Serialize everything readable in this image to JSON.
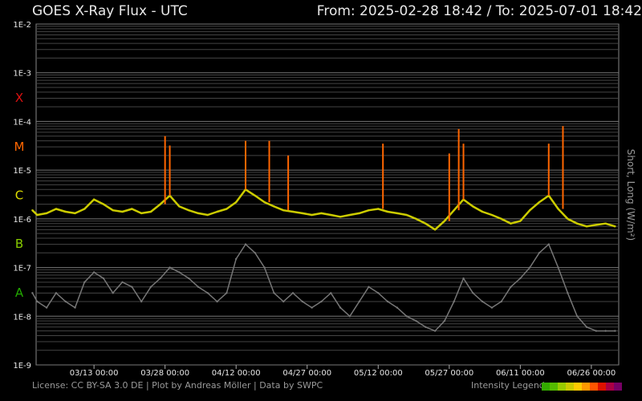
{
  "header": {
    "title": "GOES X-Ray Flux - UTC",
    "range": "From: 2025-02-28 18:42  /  To: 2025-07-01 18:42"
  },
  "footer": {
    "license": "License: CC BY-SA 3.0 DE | Plot by Andreas Möller | Data by SWPC",
    "legend_label": "Intensity Legend",
    "legend_colors": [
      "#33aa00",
      "#55bb00",
      "#99cc00",
      "#cccc00",
      "#ffcc00",
      "#ff9900",
      "#ff5500",
      "#dd1100",
      "#aa0044",
      "#770066"
    ]
  },
  "chart_data": {
    "type": "line",
    "title": "GOES X-Ray Flux - UTC",
    "ylabel": "Short, Long (W/m²)",
    "yscale": "log",
    "ylim": [
      1e-09,
      0.01
    ],
    "xlim": [
      "2025-02-28 18:42",
      "2025-07-01 18:42"
    ],
    "y_ticks": [
      "1E-9",
      "1E-8",
      "1E-7",
      "1E-6",
      "1E-5",
      "1E-4",
      "1E-3",
      "1E-2"
    ],
    "x_ticks": [
      {
        "date": "2025-03-13",
        "label": "03/13 00:00"
      },
      {
        "date": "2025-03-28",
        "label": "03/28 00:00"
      },
      {
        "date": "2025-04-12",
        "label": "04/12 00:00"
      },
      {
        "date": "2025-04-27",
        "label": "04/27 00:00"
      },
      {
        "date": "2025-05-12",
        "label": "05/12 00:00"
      },
      {
        "date": "2025-05-27",
        "label": "05/27 00:00"
      },
      {
        "date": "2025-06-11",
        "label": "06/11 00:00"
      },
      {
        "date": "2025-06-26",
        "label": "06/26 00:00"
      }
    ],
    "flare_classes": [
      {
        "label": "X",
        "color": "#dd1111",
        "lower": 0.0001
      },
      {
        "label": "M",
        "color": "#ff6600",
        "lower": 1e-05
      },
      {
        "label": "C",
        "color": "#dddd00",
        "lower": 1e-06
      },
      {
        "label": "B",
        "color": "#88cc00",
        "lower": 1e-07
      },
      {
        "label": "A",
        "color": "#22aa00",
        "lower": 1e-08
      }
    ],
    "grid": true,
    "series": [
      {
        "name": "Long",
        "color": "#cccc00",
        "x": [
          "2025-02-28",
          "2025-03-01",
          "2025-03-03",
          "2025-03-05",
          "2025-03-07",
          "2025-03-09",
          "2025-03-11",
          "2025-03-13",
          "2025-03-15",
          "2025-03-17",
          "2025-03-19",
          "2025-03-21",
          "2025-03-23",
          "2025-03-25",
          "2025-03-27",
          "2025-03-29",
          "2025-03-31",
          "2025-04-02",
          "2025-04-04",
          "2025-04-06",
          "2025-04-08",
          "2025-04-10",
          "2025-04-12",
          "2025-04-14",
          "2025-04-16",
          "2025-04-18",
          "2025-04-20",
          "2025-04-22",
          "2025-04-24",
          "2025-04-26",
          "2025-04-28",
          "2025-04-30",
          "2025-05-02",
          "2025-05-04",
          "2025-05-06",
          "2025-05-08",
          "2025-05-10",
          "2025-05-12",
          "2025-05-14",
          "2025-05-16",
          "2025-05-18",
          "2025-05-20",
          "2025-05-22",
          "2025-05-24",
          "2025-05-26",
          "2025-05-28",
          "2025-05-30",
          "2025-06-01",
          "2025-06-03",
          "2025-06-05",
          "2025-06-07",
          "2025-06-09",
          "2025-06-11",
          "2025-06-13",
          "2025-06-15",
          "2025-06-17",
          "2025-06-19",
          "2025-06-21",
          "2025-06-23",
          "2025-06-25",
          "2025-06-27",
          "2025-06-29",
          "2025-07-01"
        ],
        "y": [
          1.5e-06,
          1.2e-06,
          1.3e-06,
          1.6e-06,
          1.4e-06,
          1.3e-06,
          1.6e-06,
          2.5e-06,
          2e-06,
          1.5e-06,
          1.4e-06,
          1.6e-06,
          1.3e-06,
          1.4e-06,
          2e-06,
          3e-06,
          1.8e-06,
          1.5e-06,
          1.3e-06,
          1.2e-06,
          1.4e-06,
          1.6e-06,
          2.2e-06,
          4e-06,
          3e-06,
          2.2e-06,
          1.8e-06,
          1.5e-06,
          1.4e-06,
          1.3e-06,
          1.2e-06,
          1.3e-06,
          1.2e-06,
          1.1e-06,
          1.2e-06,
          1.3e-06,
          1.5e-06,
          1.6e-06,
          1.4e-06,
          1.3e-06,
          1.2e-06,
          1e-06,
          8e-07,
          6e-07,
          9e-07,
          1.5e-06,
          2.5e-06,
          1.8e-06,
          1.4e-06,
          1.2e-06,
          1e-06,
          8e-07,
          9e-07,
          1.5e-06,
          2.2e-06,
          3e-06,
          1.6e-06,
          1e-06,
          8e-07,
          7e-07,
          7.5e-07,
          8e-07,
          7e-07
        ]
      },
      {
        "name": "Short",
        "color": "#777777",
        "x": [
          "2025-02-28",
          "2025-03-01",
          "2025-03-03",
          "2025-03-05",
          "2025-03-07",
          "2025-03-09",
          "2025-03-11",
          "2025-03-13",
          "2025-03-15",
          "2025-03-17",
          "2025-03-19",
          "2025-03-21",
          "2025-03-23",
          "2025-03-25",
          "2025-03-27",
          "2025-03-29",
          "2025-03-31",
          "2025-04-02",
          "2025-04-04",
          "2025-04-06",
          "2025-04-08",
          "2025-04-10",
          "2025-04-12",
          "2025-04-14",
          "2025-04-16",
          "2025-04-18",
          "2025-04-20",
          "2025-04-22",
          "2025-04-24",
          "2025-04-26",
          "2025-04-28",
          "2025-04-30",
          "2025-05-02",
          "2025-05-04",
          "2025-05-06",
          "2025-05-08",
          "2025-05-10",
          "2025-05-12",
          "2025-05-14",
          "2025-05-16",
          "2025-05-18",
          "2025-05-20",
          "2025-05-22",
          "2025-05-24",
          "2025-05-26",
          "2025-05-28",
          "2025-05-30",
          "2025-06-01",
          "2025-06-03",
          "2025-06-05",
          "2025-06-07",
          "2025-06-09",
          "2025-06-11",
          "2025-06-13",
          "2025-06-15",
          "2025-06-17",
          "2025-06-19",
          "2025-06-21",
          "2025-06-23",
          "2025-06-25",
          "2025-06-27",
          "2025-06-29",
          "2025-07-01"
        ],
        "y": [
          3e-08,
          2e-08,
          1.5e-08,
          3e-08,
          2e-08,
          1.5e-08,
          5e-08,
          8e-08,
          6e-08,
          3e-08,
          5e-08,
          4e-08,
          2e-08,
          4e-08,
          6e-08,
          1e-07,
          8e-08,
          6e-08,
          4e-08,
          3e-08,
          2e-08,
          3e-08,
          1.5e-07,
          3e-07,
          2e-07,
          1e-07,
          3e-08,
          2e-08,
          3e-08,
          2e-08,
          1.5e-08,
          2e-08,
          3e-08,
          1.5e-08,
          1e-08,
          2e-08,
          4e-08,
          3e-08,
          2e-08,
          1.5e-08,
          1e-08,
          8e-09,
          6e-09,
          5e-09,
          8e-09,
          2e-08,
          6e-08,
          3e-08,
          2e-08,
          1.5e-08,
          2e-08,
          4e-08,
          6e-08,
          1e-07,
          2e-07,
          3e-07,
          1e-07,
          3e-08,
          1e-08,
          6e-09,
          5e-09,
          5e-09,
          5e-09
        ]
      }
    ],
    "flare_peaks": [
      {
        "x": "2025-03-28",
        "y": 5e-05
      },
      {
        "x": "2025-03-29",
        "y": 3.2e-05
      },
      {
        "x": "2025-04-14",
        "y": 4e-05
      },
      {
        "x": "2025-04-19",
        "y": 4e-05
      },
      {
        "x": "2025-04-23",
        "y": 2e-05
      },
      {
        "x": "2025-05-13",
        "y": 3.5e-05
      },
      {
        "x": "2025-05-27",
        "y": 2.2e-05
      },
      {
        "x": "2025-05-29",
        "y": 7e-05
      },
      {
        "x": "2025-05-30",
        "y": 3.5e-05
      },
      {
        "x": "2025-06-17",
        "y": 3.5e-05
      },
      {
        "x": "2025-06-20",
        "y": 8e-05
      }
    ]
  }
}
